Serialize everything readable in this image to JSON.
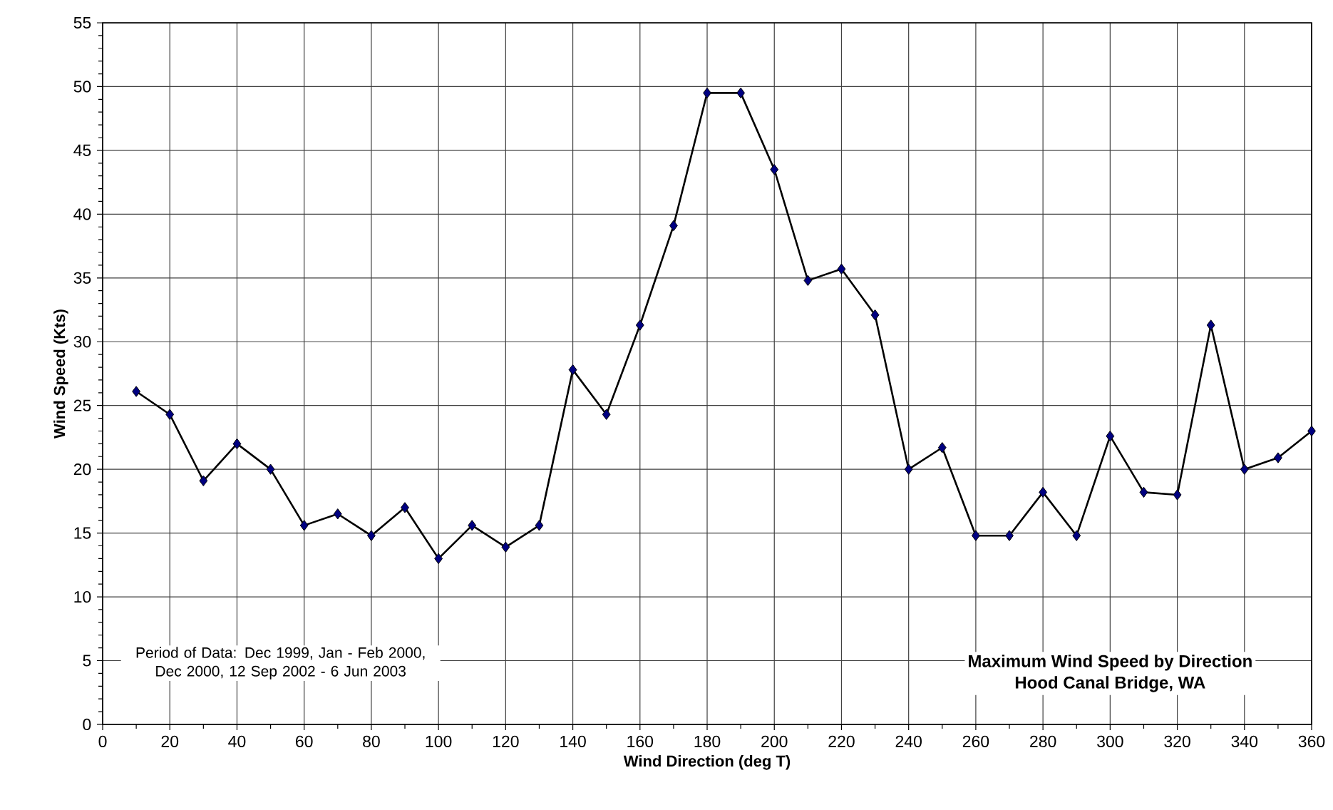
{
  "chart_data": {
    "type": "line",
    "title": "Maximum Wind Speed by Direction",
    "subtitle": "Hood Canal Bridge, WA",
    "xlabel": "Wind Direction (deg T)",
    "ylabel": "Wind Speed (Kts)",
    "annotations": [
      "Period of Data: Dec 1999, Jan - Feb 2000, Dec 2000, 12 Sep 2002 - 6 Jun 2003"
    ],
    "x": [
      10,
      20,
      30,
      40,
      50,
      60,
      70,
      80,
      90,
      100,
      110,
      120,
      130,
      140,
      150,
      160,
      170,
      180,
      190,
      200,
      210,
      220,
      230,
      240,
      250,
      260,
      270,
      280,
      290,
      300,
      310,
      320,
      330,
      340,
      350,
      360
    ],
    "series": [
      {
        "color": "#000080",
        "values": [
          26.1,
          24.3,
          19.1,
          22,
          20,
          15.6,
          16.5,
          14.8,
          17,
          13,
          15.6,
          13.9,
          15.6,
          27.8,
          24.3,
          31.3,
          39.1,
          49.5,
          49.5,
          43.5,
          34.8,
          35.7,
          32.1,
          20,
          21.7,
          14.8,
          14.8,
          18.2,
          14.8,
          22.6,
          18.2,
          18,
          31.3,
          20,
          20.9,
          23
        ]
      }
    ],
    "xlim": [
      0,
      360
    ],
    "ylim": [
      0,
      55
    ],
    "xticks": [
      0,
      20,
      40,
      60,
      80,
      100,
      120,
      140,
      160,
      180,
      200,
      220,
      240,
      260,
      280,
      300,
      320,
      340,
      360
    ],
    "yticks": [
      0,
      5,
      10,
      15,
      20,
      25,
      30,
      35,
      40,
      45,
      50,
      55
    ],
    "grid": true,
    "marker": "diamond",
    "line_style": "solid"
  }
}
